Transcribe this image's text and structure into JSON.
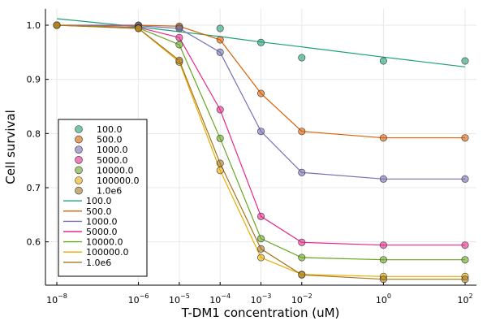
{
  "chart_data": {
    "type": "line",
    "xlabel": "T-DM1 concentration (uM)",
    "ylabel": "Cell survival",
    "x_scale": "log10",
    "xlim": [
      1e-08,
      100
    ],
    "ylim": [
      0.52,
      1.03
    ],
    "x_ticks": [
      {
        "value": 1e-08,
        "base": "10",
        "exp": "−8"
      },
      {
        "value": 1e-06,
        "base": "10",
        "exp": "−6"
      },
      {
        "value": 1e-05,
        "base": "10",
        "exp": "−5"
      },
      {
        "value": 0.0001,
        "base": "10",
        "exp": "−4"
      },
      {
        "value": 0.001,
        "base": "10",
        "exp": "−3"
      },
      {
        "value": 0.01,
        "base": "10",
        "exp": "−2"
      },
      {
        "value": 1,
        "base": "10",
        "exp": "0"
      },
      {
        "value": 100,
        "base": "10",
        "exp": "2"
      }
    ],
    "y_ticks": [
      {
        "value": 0.6,
        "label": "0.6"
      },
      {
        "value": 0.7,
        "label": "0.7"
      },
      {
        "value": 0.8,
        "label": "0.8"
      },
      {
        "value": 0.9,
        "label": "0.9"
      },
      {
        "value": 1.0,
        "label": "1.0"
      }
    ],
    "grid": true,
    "legend_position": "bottom-left",
    "x": [
      1e-08,
      1e-06,
      1e-05,
      0.0001,
      0.001,
      0.01,
      1,
      100
    ],
    "scatter_series": [
      {
        "name": "100.0",
        "color": "#1b9e77",
        "values": [
          1.0,
          0.999,
          0.996,
          0.994,
          0.968,
          0.94,
          0.934,
          0.934
        ]
      },
      {
        "name": "500.0",
        "color": "#d95f02",
        "values": [
          1.0,
          1.0,
          0.998,
          0.973,
          0.874,
          0.804,
          0.792,
          0.792
        ]
      },
      {
        "name": "1000.0",
        "color": "#7570b3",
        "values": [
          1.0,
          0.999,
          0.994,
          0.95,
          0.804,
          0.728,
          0.716,
          0.716
        ]
      },
      {
        "name": "5000.0",
        "color": "#e7298a",
        "values": [
          1.0,
          0.996,
          0.977,
          0.844,
          0.647,
          0.599,
          0.594,
          0.594
        ]
      },
      {
        "name": "10000.0",
        "color": "#66a61e",
        "values": [
          1.0,
          0.995,
          0.964,
          0.791,
          0.606,
          0.571,
          0.567,
          0.567
        ]
      },
      {
        "name": "100000.0",
        "color": "#e6ab02",
        "values": [
          1.0,
          0.994,
          0.932,
          0.732,
          0.571,
          0.54,
          0.536,
          0.536
        ]
      },
      {
        "name": "1.0e6",
        "color": "#a6761d",
        "values": [
          1.0,
          0.994,
          0.935,
          0.745,
          0.587,
          0.539,
          0.531,
          0.531
        ]
      }
    ],
    "line_series": [
      {
        "name": "100.0",
        "color": "#1b9e77",
        "values": [
          1.012,
          0.997,
          0.988,
          0.979,
          0.969,
          0.96,
          0.941,
          0.923
        ]
      },
      {
        "name": "500.0",
        "color": "#d95f02",
        "values": [
          1.0,
          1.0,
          0.998,
          0.973,
          0.874,
          0.804,
          0.792,
          0.792
        ]
      },
      {
        "name": "1000.0",
        "color": "#7570b3",
        "values": [
          1.0,
          0.999,
          0.994,
          0.95,
          0.804,
          0.728,
          0.716,
          0.716
        ]
      },
      {
        "name": "5000.0",
        "color": "#e7298a",
        "values": [
          1.0,
          0.996,
          0.977,
          0.844,
          0.647,
          0.599,
          0.594,
          0.594
        ]
      },
      {
        "name": "10000.0",
        "color": "#66a61e",
        "values": [
          1.0,
          0.995,
          0.964,
          0.791,
          0.606,
          0.571,
          0.567,
          0.567
        ]
      },
      {
        "name": "100000.0",
        "color": "#e6ab02",
        "values": [
          1.0,
          0.994,
          0.932,
          0.732,
          0.571,
          0.54,
          0.536,
          0.536
        ]
      },
      {
        "name": "1.0e6",
        "color": "#a6761d",
        "values": [
          1.0,
          0.994,
          0.935,
          0.745,
          0.587,
          0.539,
          0.531,
          0.531
        ]
      }
    ]
  }
}
